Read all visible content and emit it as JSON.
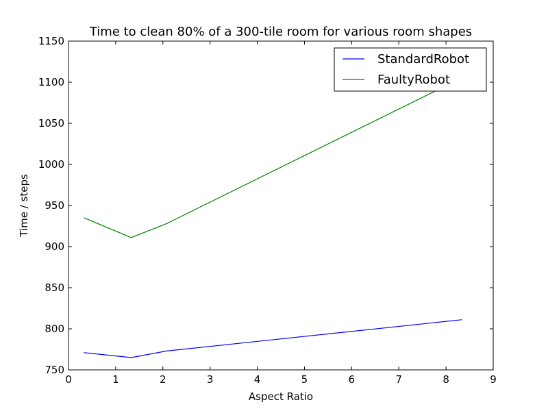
{
  "chart_data": {
    "type": "line",
    "title": "Time to clean 80% of a 300-tile room for various room shapes",
    "xlabel": "Aspect Ratio",
    "ylabel": "Time / steps",
    "xlim": [
      0,
      9
    ],
    "ylim": [
      750,
      1150
    ],
    "xticks": [
      0,
      1,
      2,
      3,
      4,
      5,
      6,
      7,
      8,
      9
    ],
    "yticks": [
      750,
      800,
      850,
      900,
      950,
      1000,
      1050,
      1100,
      1150
    ],
    "grid": false,
    "legend_position": "top-right",
    "x": [
      0.33,
      1.33,
      2.08,
      8.33
    ],
    "series": [
      {
        "name": "StandardRobot",
        "color": "#0000ff",
        "values": [
          771,
          765,
          773,
          811
        ]
      },
      {
        "name": "FaultyRobot",
        "color": "#008000",
        "values": [
          935,
          911,
          928,
          1105
        ]
      }
    ]
  }
}
